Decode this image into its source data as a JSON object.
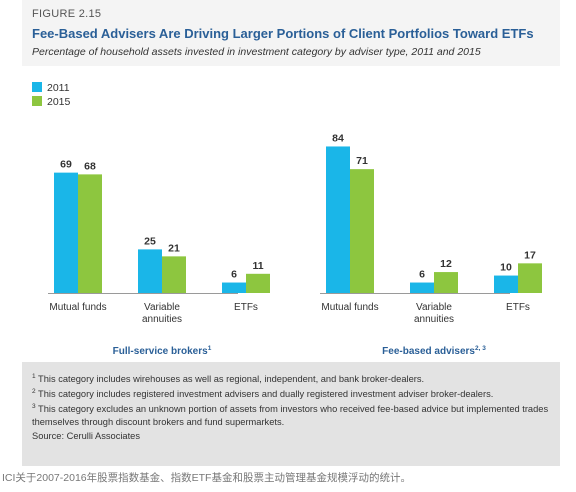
{
  "figure": {
    "label": "FIGURE 2.15",
    "title": "Fee-Based Advisers Are Driving Larger Portions of Client Portfolios Toward ETFs",
    "subtitle": "Percentage of household assets invested in investment category by adviser type, 2011 and 2015"
  },
  "colors": {
    "2011": "#1ab6e8",
    "2015": "#8dc63f",
    "group_label": "#2a5f97"
  },
  "chart_data": {
    "type": "bar",
    "series": [
      {
        "name": "2011",
        "color": "#1ab6e8"
      },
      {
        "name": "2015",
        "color": "#8dc63f"
      }
    ],
    "groups": [
      {
        "name": "Full-service brokers",
        "footnote_ref": "1",
        "categories": [
          {
            "label": [
              "Mutual funds"
            ],
            "values": [
              69,
              68
            ]
          },
          {
            "label": [
              "Variable",
              "annuities"
            ],
            "values": [
              25,
              21
            ]
          },
          {
            "label": [
              "ETFs"
            ],
            "values": [
              6,
              11
            ]
          }
        ]
      },
      {
        "name": "Fee-based advisers",
        "footnote_ref": "2, 3",
        "categories": [
          {
            "label": [
              "Mutual funds"
            ],
            "values": [
              84,
              71
            ]
          },
          {
            "label": [
              "Variable",
              "annuities"
            ],
            "values": [
              6,
              12
            ]
          },
          {
            "label": [
              "ETFs"
            ],
            "values": [
              10,
              17
            ]
          }
        ]
      }
    ],
    "ylim": [
      0,
      90
    ],
    "legend_position": "top-left",
    "grid": false
  },
  "footnotes": [
    {
      "mark": "1",
      "text": "This category includes wirehouses as well as regional, independent, and bank broker-dealers."
    },
    {
      "mark": "2",
      "text": "This category includes registered investment advisers and dually registered investment adviser broker-dealers."
    },
    {
      "mark": "3",
      "text": "This category excludes an unknown portion of assets from investors who received fee-based advice but implemented trades themselves through discount brokers and fund supermarkets."
    }
  ],
  "source": "Source: Cerulli Associates",
  "caption": "ICI关于2007-2016年股票指数基金、指数ETF基金和股票主动管理基金规模浮动的统计。"
}
